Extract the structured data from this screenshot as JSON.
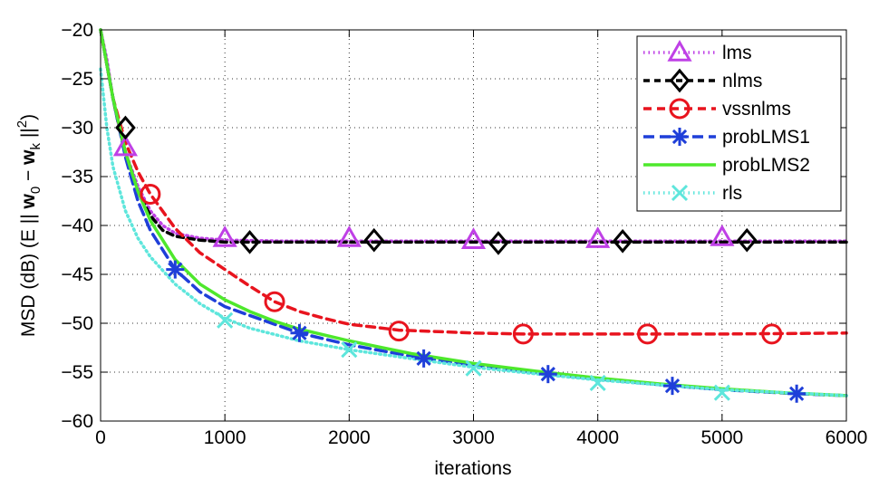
{
  "chart_data": {
    "type": "line",
    "title": "",
    "xlabel": "iterations",
    "ylabel": "MSD (dB) (E || w0 − wk ||²)",
    "ylabel_parts": {
      "prefix": "MSD (dB) (E ||  ",
      "w": "w",
      "sub0": "0",
      "minus": "  −  ",
      "sub_k": "k",
      "suffix": " ||",
      "sup": "2",
      "close": ")"
    },
    "xlim": [
      0,
      6000
    ],
    "ylim": [
      -60,
      -20
    ],
    "xticks": [
      0,
      1000,
      2000,
      3000,
      4000,
      5000,
      6000
    ],
    "yticks": [
      -20,
      -25,
      -30,
      -35,
      -40,
      -45,
      -50,
      -55,
      -60
    ],
    "xtick_labels": [
      "0",
      "1000",
      "2000",
      "3000",
      "4000",
      "5000",
      "6000"
    ],
    "ytick_labels": [
      "−20",
      "−25",
      "−30",
      "−35",
      "−40",
      "−45",
      "−50",
      "−55",
      "−60"
    ],
    "grid": true,
    "legend_position": "top-right",
    "series": [
      {
        "name": "lms",
        "color": "#bf40e6",
        "dash": "1.5,4",
        "marker": "triangle",
        "x": [
          0,
          50,
          100,
          150,
          200,
          300,
          400,
          500,
          600,
          800,
          1000,
          1500,
          2000,
          3000,
          4000,
          5000,
          6000
        ],
        "y": [
          -20,
          -23,
          -27,
          -30,
          -32.5,
          -36,
          -38.5,
          -40,
          -40.8,
          -41.3,
          -41.5,
          -41.6,
          -41.6,
          -41.6,
          -41.6,
          -41.6,
          -41.6
        ],
        "markers_x": [
          200,
          1000,
          2000,
          3000,
          4000,
          5000
        ],
        "markers_y": [
          -32,
          -41.3,
          -41.3,
          -41.5,
          -41.4,
          -41.2
        ]
      },
      {
        "name": "nlms",
        "color": "#000000",
        "dash": "7,5",
        "marker": "diamond",
        "x": [
          0,
          50,
          100,
          150,
          200,
          300,
          400,
          500,
          600,
          800,
          1000,
          1500,
          2000,
          3000,
          4000,
          5000,
          6000
        ],
        "y": [
          -20,
          -23.5,
          -27,
          -30,
          -32.5,
          -36.5,
          -39,
          -40.5,
          -41.1,
          -41.5,
          -41.7,
          -41.7,
          -41.7,
          -41.7,
          -41.7,
          -41.7,
          -41.7
        ],
        "markers_x": [
          200,
          1200,
          2200,
          3200,
          4200,
          5200
        ],
        "markers_y": [
          -30,
          -41.7,
          -41.5,
          -41.8,
          -41.6,
          -41.5
        ]
      },
      {
        "name": "vssnlms",
        "color": "#e8141e",
        "dash": "9,6",
        "marker": "circle",
        "x": [
          0,
          100,
          200,
          300,
          400,
          600,
          800,
          1000,
          1200,
          1400,
          1600,
          1800,
          2000,
          2200,
          2400,
          2600,
          3000,
          3400,
          4000,
          5000,
          6000
        ],
        "y": [
          -20,
          -27,
          -31.5,
          -34.5,
          -36.8,
          -40.3,
          -42.8,
          -44.5,
          -46.2,
          -47.8,
          -48.8,
          -49.5,
          -50.1,
          -50.4,
          -50.7,
          -50.8,
          -51,
          -51.1,
          -51.1,
          -51.1,
          -51
        ],
        "markers_x": [
          400,
          1400,
          2400,
          3400,
          4400,
          5400
        ],
        "markers_y": [
          -36.8,
          -47.8,
          -50.8,
          -51.1,
          -51.1,
          -51.1
        ]
      },
      {
        "name": "probLMS1",
        "color": "#1f3fd9",
        "dash": "12,6",
        "marker": "star",
        "x": [
          0,
          100,
          200,
          300,
          400,
          600,
          800,
          1000,
          1200,
          1600,
          2000,
          2600,
          3000,
          3600,
          4000,
          4600,
          5000,
          5600,
          6000
        ],
        "y": [
          -20,
          -27,
          -33,
          -37.5,
          -40.5,
          -44.5,
          -46.8,
          -48.3,
          -49.2,
          -51,
          -52.2,
          -53.6,
          -54.3,
          -55.2,
          -55.7,
          -56.4,
          -56.8,
          -57.2,
          -57.4
        ],
        "markers_x": [
          600,
          1600,
          2600,
          3600,
          4600,
          5600
        ],
        "markers_y": [
          -44.5,
          -51,
          -53.6,
          -55.2,
          -56.4,
          -57.2
        ]
      },
      {
        "name": "probLMS2",
        "color": "#4ee82c",
        "dash": "",
        "marker": "",
        "x": [
          0,
          100,
          200,
          300,
          400,
          600,
          800,
          1000,
          1200,
          1400,
          1600,
          2000,
          2500,
          3000,
          3500,
          4000,
          4500,
          5000,
          5500,
          6000
        ],
        "y": [
          -20,
          -27,
          -32.5,
          -36.5,
          -39.5,
          -43.5,
          -46,
          -47.6,
          -48.8,
          -49.8,
          -50.6,
          -51.8,
          -53.1,
          -54.1,
          -54.9,
          -55.6,
          -56.2,
          -56.7,
          -57.1,
          -57.4
        ],
        "markers_x": [],
        "markers_y": []
      },
      {
        "name": "rls",
        "color": "#5ee6dc",
        "dash": "1.5,4",
        "marker": "cross",
        "x": [
          0,
          50,
          100,
          200,
          300,
          400,
          600,
          800,
          1000,
          1200,
          1600,
          2000,
          2600,
          3000,
          3600,
          4000,
          5000,
          6000
        ],
        "y": [
          -24,
          -30,
          -34,
          -38.5,
          -41.3,
          -43.2,
          -46,
          -48,
          -49.5,
          -50.5,
          -51.8,
          -52.7,
          -53.8,
          -54.5,
          -55.3,
          -55.8,
          -56.8,
          -57.4
        ],
        "markers_x": [
          1000,
          2000,
          3000,
          4000,
          5000
        ],
        "markers_y": [
          -49.7,
          -52.7,
          -54.6,
          -56.1,
          -57.1
        ]
      }
    ]
  }
}
